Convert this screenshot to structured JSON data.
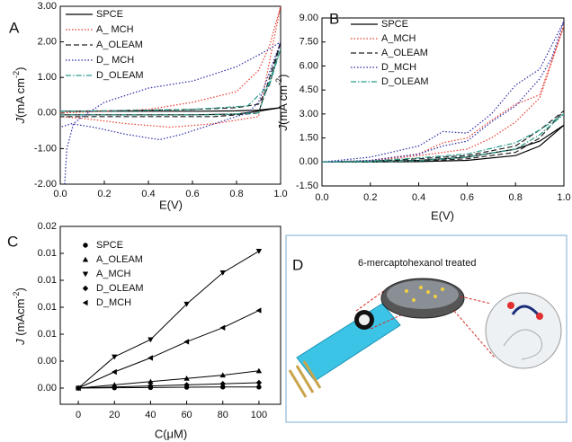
{
  "chart_data": [
    {
      "type": "line",
      "panel_label": "A",
      "xlabel": "E(V)",
      "ylabel": [
        "J",
        "(mA cm",
        "-2",
        ")"
      ],
      "legend": "upper left",
      "xlim": [
        0,
        1
      ],
      "ylim": [
        -2,
        3
      ],
      "xticks": [
        {
          "value": 0,
          "label": "0.0"
        },
        {
          "value": 0.2,
          "label": "0.2"
        },
        {
          "value": 0.4,
          "label": "0.4"
        },
        {
          "value": 0.6,
          "label": "0.6"
        },
        {
          "value": 0.8,
          "label": "0.8"
        },
        {
          "value": 1,
          "label": "1.0"
        }
      ],
      "yticks": [
        {
          "value": -2,
          "label": "-2.00"
        },
        {
          "value": -1,
          "label": "-1.00"
        },
        {
          "value": 0,
          "label": "0.00"
        },
        {
          "value": 1,
          "label": "1.00"
        },
        {
          "value": 2,
          "label": "2.00"
        },
        {
          "value": 3,
          "label": "3.00"
        }
      ],
      "series": [
        {
          "name": "SPCE",
          "color": "#000000",
          "dash": "solid",
          "x": [
            0,
            0.2,
            0.4,
            0.6,
            0.8,
            0.9,
            1.0,
            0.9,
            0.8,
            0.6,
            0.4,
            0.2,
            0
          ],
          "values": [
            0.05,
            0.05,
            0.05,
            0.05,
            0.06,
            0.08,
            0.15,
            0.05,
            -0.03,
            -0.05,
            -0.05,
            -0.05,
            -0.05
          ]
        },
        {
          "name": "A_ MCH",
          "color": "#e8392d",
          "dash": "dotted",
          "x": [
            0,
            0.2,
            0.4,
            0.6,
            0.8,
            0.9,
            0.95,
            1.0,
            0.9,
            0.7,
            0.5,
            0.3,
            0.1,
            0
          ],
          "values": [
            0,
            0.05,
            0.1,
            0.3,
            0.6,
            1.2,
            1.9,
            3.0,
            -0.1,
            -0.3,
            -0.4,
            -0.3,
            -0.15,
            -0.1
          ]
        },
        {
          "name": "A_OLEAM",
          "color": "#222222",
          "dash": "dashed",
          "x": [
            0,
            0.2,
            0.4,
            0.6,
            0.8,
            0.9,
            0.95,
            1.0,
            0.9,
            0.7,
            0.4,
            0.1,
            0
          ],
          "values": [
            0.05,
            0.06,
            0.08,
            0.1,
            0.15,
            0.25,
            0.8,
            2.0,
            0,
            -0.1,
            -0.1,
            -0.1,
            -0.1
          ]
        },
        {
          "name": "D_ MCH",
          "color": "#2b2ba8",
          "dash": "dotted",
          "x": [
            0.02,
            0.03,
            0.06,
            0.1,
            0.2,
            0.4,
            0.6,
            0.8,
            0.95,
            1.0,
            0.9,
            0.85,
            0.7,
            0.55,
            0.45,
            0.3,
            0.15,
            0.05,
            0
          ],
          "values": [
            -2.0,
            -1.0,
            -0.3,
            -0.1,
            0.3,
            0.7,
            0.9,
            1.3,
            1.8,
            2.0,
            0.3,
            0.0,
            -0.3,
            -0.6,
            -0.75,
            -0.6,
            -0.4,
            -0.3,
            -0.4
          ]
        },
        {
          "name": "D_OLEAM",
          "color": "#2a9a8a",
          "dash": "dashdot",
          "x": [
            0,
            0.2,
            0.4,
            0.6,
            0.85,
            0.95,
            1.0,
            0.9,
            0.7,
            0.4,
            0.1,
            0
          ],
          "values": [
            0.05,
            0.06,
            0.08,
            0.1,
            0.2,
            0.8,
            1.8,
            0,
            -0.05,
            -0.05,
            -0.05,
            -0.05
          ]
        }
      ]
    },
    {
      "type": "line",
      "panel_label": "B",
      "xlabel": "E(V)",
      "ylabel": [
        "J",
        "(mA cm",
        "-2",
        ")"
      ],
      "legend": "upper left",
      "xlim": [
        0,
        1
      ],
      "ylim": [
        -1.5,
        9
      ],
      "xticks": [
        {
          "value": 0,
          "label": "0.0"
        },
        {
          "value": 0.2,
          "label": "0.2"
        },
        {
          "value": 0.4,
          "label": "0.4"
        },
        {
          "value": 0.6,
          "label": "0.6"
        },
        {
          "value": 0.8,
          "label": "0.8"
        },
        {
          "value": 1,
          "label": "1.0"
        }
      ],
      "yticks": [
        {
          "value": -1.5,
          "label": "-1.50"
        },
        {
          "value": 0,
          "label": "0.00"
        },
        {
          "value": 1.5,
          "label": "1.50"
        },
        {
          "value": 3,
          "label": "3.00"
        },
        {
          "value": 4.5,
          "label": "4.50"
        },
        {
          "value": 6,
          "label": "6.00"
        },
        {
          "value": 7.5,
          "label": "7.50"
        },
        {
          "value": 9,
          "label": "9.00"
        }
      ],
      "series": [
        {
          "name": "SPCE",
          "color": "#000000",
          "dash": "solid",
          "x": [
            0,
            0.2,
            0.4,
            0.6,
            0.8,
            0.9,
            1.0,
            0.9,
            0.8,
            0.6,
            0.4,
            0.2,
            0
          ],
          "values": [
            0,
            0.02,
            0.1,
            0.3,
            0.8,
            1.3,
            2.3,
            1.0,
            0.4,
            0.1,
            0.02,
            0,
            0
          ]
        },
        {
          "name": "A_MCH",
          "color": "#e8392d",
          "dash": "dotted",
          "x": [
            0,
            0.2,
            0.4,
            0.5,
            0.6,
            0.7,
            0.8,
            0.9,
            1.0,
            0.9,
            0.8,
            0.7,
            0.6,
            0.4,
            0.2,
            0
          ],
          "values": [
            0,
            0.1,
            0.5,
            1.2,
            1.5,
            2.6,
            3.6,
            4.2,
            8.5,
            4.0,
            2.5,
            1.5,
            0.8,
            0.4,
            0.05,
            0
          ]
        },
        {
          "name": "A_OLEAM",
          "color": "#222222",
          "dash": "dashed",
          "x": [
            0,
            0.2,
            0.4,
            0.6,
            0.8,
            0.9,
            1.0,
            0.9,
            0.8,
            0.6,
            0.4,
            0.2,
            0
          ],
          "values": [
            0,
            0.05,
            0.2,
            0.4,
            1.0,
            2.0,
            3.2,
            1.5,
            0.6,
            0.2,
            0.05,
            0,
            0
          ]
        },
        {
          "name": "D_MCH",
          "color": "#2b2ba8",
          "dash": "dotted",
          "x": [
            0,
            0.2,
            0.4,
            0.5,
            0.6,
            0.7,
            0.8,
            0.9,
            1.0,
            0.95,
            0.9,
            0.8,
            0.7,
            0.6,
            0.5,
            0.4,
            0.2,
            0
          ],
          "values": [
            0,
            0.3,
            1.0,
            1.9,
            1.8,
            3.0,
            4.8,
            5.8,
            8.8,
            6.5,
            5.2,
            3.5,
            2.5,
            1.3,
            1.0,
            0.5,
            0.1,
            0
          ]
        },
        {
          "name": "D_OLEAM",
          "color": "#2a9a8a",
          "dash": "dashdot",
          "x": [
            0,
            0.2,
            0.4,
            0.6,
            0.8,
            0.9,
            1.0,
            0.9,
            0.8,
            0.6,
            0.4,
            0.2,
            0
          ],
          "values": [
            0,
            0.06,
            0.25,
            0.5,
            1.2,
            2.0,
            3.0,
            1.7,
            0.8,
            0.3,
            0.08,
            0,
            0
          ]
        }
      ]
    },
    {
      "type": "scatter",
      "panel_label": "C",
      "xlabel": "C(μM)",
      "ylabel": [
        "J",
        " (mAcm",
        "-2",
        ")"
      ],
      "legend": "upper left",
      "xlim": [
        -10,
        112
      ],
      "ylim": [
        -0.0015,
        0.015
      ],
      "xticks": [
        0,
        20,
        40,
        60,
        80,
        100
      ],
      "yticks": [
        {
          "value": 0,
          "label": "0.00"
        },
        {
          "value": 0.0025,
          "label": "0.00"
        },
        {
          "value": 0.005,
          "label": "0.01"
        },
        {
          "value": 0.0075,
          "label": "0.01"
        },
        {
          "value": 0.01,
          "label": "0.01"
        },
        {
          "value": 0.0125,
          "label": "0.01"
        },
        {
          "value": 0.015,
          "label": "0.02"
        }
      ],
      "x": [
        0,
        20,
        40,
        60,
        80,
        100
      ],
      "series": [
        {
          "name": "SPCE",
          "color": "#000000",
          "marker": "circle",
          "values": [
            0,
            3e-05,
            5e-05,
            8e-05,
            0.0001,
            0.0001
          ]
        },
        {
          "name": "A_OLEAM",
          "color": "#000000",
          "marker": "triangle-up",
          "values": [
            0,
            0.0003,
            0.0006,
            0.0009,
            0.0012,
            0.0016
          ]
        },
        {
          "name": "A_MCH",
          "color": "#000000",
          "marker": "triangle-down",
          "values": [
            0,
            0.0029,
            0.0045,
            0.0078,
            0.0107,
            0.0127
          ]
        },
        {
          "name": "D_OLEAM",
          "color": "#000000",
          "marker": "diamond",
          "values": [
            0,
            0.0001,
            0.0002,
            0.0003,
            0.0004,
            0.0005
          ]
        },
        {
          "name": "D_MCH",
          "color": "#000000",
          "marker": "triangle-left",
          "values": [
            0,
            0.0015,
            0.0028,
            0.0043,
            0.0056,
            0.0072
          ]
        }
      ]
    }
  ],
  "panel_d": {
    "label": "D",
    "caption": "6-mercaptohexanol treated"
  }
}
